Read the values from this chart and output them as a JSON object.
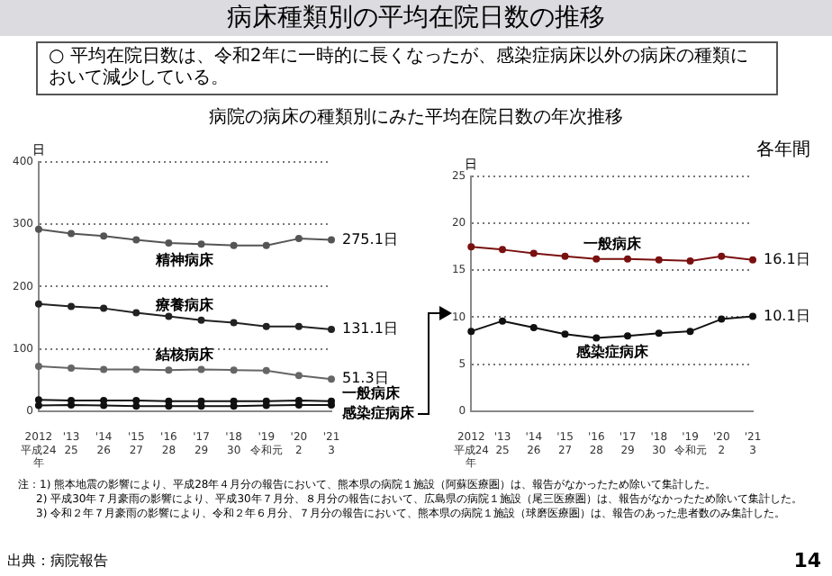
{
  "chart_data": [
    {
      "type": "line",
      "title": "病床種類別の平均在院日数の推移",
      "subtitle": "○ 平均在院日数は、令和2年に一時的に長くなったが、感染症病床以外の病床の種類において減少している。",
      "annotations": [
        "病院の病床の種類別にみた平均在院日数の年次推移",
        "注：1) 熊本地震の影響により、平成28年４月分の報告において、熊本県の病院１施設（阿蘇医療圏）は、報告がなかったため除いて集計した。",
        "2) 平成30年７月豪雨の影響により、平成30年７月分、８月分の報告において、広島県の病院１施設（尾三医療圏）は、報告がなかったため除いて集計した。",
        "3) 令和２年７月豪雨の影響により、令和２年６月分、７月分の報告において、熊本県の病院１施設（球磨医療圏）は、報告のあった患者数のみ集計した。",
        "出典：病院報告",
        "14"
      ],
      "ylabel": "日",
      "categories": [
        "2012\n平成24\n年",
        "'13\n25",
        "'14\n26",
        "'15\n27",
        "'16\n28",
        "'17\n29",
        "'18\n30",
        "'19\n令和元",
        "'20\n2",
        "'21\n3"
      ],
      "ylim": [
        0,
        400
      ],
      "yticks": [
        0,
        100,
        200,
        300,
        400
      ],
      "grid": "y",
      "marker": "circle",
      "legend": false,
      "series": [
        {
          "name": "精神病床",
          "color": "#555555",
          "values": [
            292,
            285,
            281,
            275,
            270,
            268,
            266,
            266,
            277,
            275.1
          ],
          "value_labels": [
            null,
            null,
            null,
            null,
            null,
            null,
            null,
            null,
            null,
            "275.1日"
          ]
        },
        {
          "name": "療養病床",
          "color": "#222222",
          "values": [
            172,
            168,
            165,
            158,
            152,
            146,
            142,
            136,
            136,
            131.1
          ],
          "value_labels": [
            null,
            null,
            null,
            null,
            null,
            null,
            null,
            null,
            null,
            "131.1日"
          ]
        },
        {
          "name": "結核病床",
          "color": "#666666",
          "values": [
            72,
            69,
            67,
            67,
            66,
            67,
            66,
            65,
            57,
            51.3
          ],
          "value_labels": [
            null,
            null,
            null,
            null,
            null,
            null,
            null,
            null,
            null,
            "51.3日"
          ]
        },
        {
          "name": "一般病床",
          "color": "#111111",
          "values": [
            18,
            17,
            17,
            17,
            16,
            16,
            16,
            16,
            17,
            16
          ]
        },
        {
          "name": "感染症病床",
          "color": "#111111",
          "values": [
            9,
            10,
            9,
            8,
            8,
            8,
            8,
            9,
            10,
            10
          ]
        }
      ]
    },
    {
      "type": "line",
      "annotations": [
        "各年間"
      ],
      "ylabel": "日",
      "categories": [
        "2012\n平成24\n年",
        "'13\n25",
        "'14\n26",
        "'15\n27",
        "'16\n28",
        "'17\n29",
        "'18\n30",
        "'19\n令和元",
        "'20\n2",
        "'21\n3"
      ],
      "ylim": [
        0,
        25
      ],
      "yticks": [
        0,
        5,
        10,
        15,
        20,
        25
      ],
      "grid": "y",
      "marker": "circle",
      "legend": false,
      "series": [
        {
          "name": "一般病床",
          "color": "#7a1010",
          "values": [
            17.5,
            17.2,
            16.8,
            16.5,
            16.2,
            16.2,
            16.1,
            16.0,
            16.5,
            16.1
          ],
          "value_labels": [
            null,
            null,
            null,
            null,
            null,
            null,
            null,
            null,
            null,
            "16.1日"
          ]
        },
        {
          "name": "感染症病床",
          "color": "#111111",
          "values": [
            8.5,
            9.6,
            8.9,
            8.2,
            7.8,
            8.0,
            8.3,
            8.5,
            9.8,
            10.1
          ],
          "value_labels": [
            null,
            null,
            null,
            null,
            null,
            null,
            null,
            null,
            null,
            "10.1日"
          ]
        }
      ]
    }
  ]
}
